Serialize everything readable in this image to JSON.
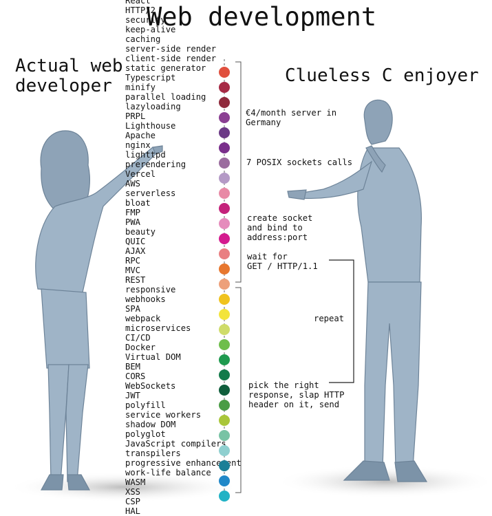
{
  "title": "Web development",
  "left_label": "Actual web\ndeveloper",
  "right_label": "Clueless C enjoyer",
  "terms": [
    "React",
    "HTTP/2",
    "security",
    "keep-alive",
    "caching",
    "server-side render",
    "client-side render",
    "static generator",
    "Typescript",
    "minify",
    "parallel loading",
    "lazyloading",
    "PRPL",
    "Lighthouse",
    "Apache",
    "nginx",
    "lighttpd",
    "prerendering",
    "Vercel",
    "AWS",
    "serverless",
    "bloat",
    "FMP",
    "PWA",
    "beauty",
    "QUIC",
    "AJAX",
    "RPC",
    "MVC",
    "REST",
    "responsive",
    "webhooks",
    "SPA",
    "webpack",
    "microservices",
    "CI/CD",
    "Docker",
    "Virtual DOM",
    "BEM",
    "CORS",
    "WebSockets",
    "JWT",
    "polyfill",
    "service workers",
    "shadow DOM",
    "polyglot",
    "JavaScript compilers",
    "transpilers",
    "progressive enhancement",
    "work-life balance",
    "WASM",
    "XSS",
    "CSP",
    "HAL"
  ],
  "dot_colors": [
    "#e0503e",
    "#a62a45",
    "#8f2a3c",
    "#8a3f92",
    "#6c3a86",
    "#7a2f8b",
    "#9b6d9f",
    "#b49ac6",
    "#e88aa6",
    "#c4227b",
    "#e58cbc",
    "#d41b8f",
    "#e97f82",
    "#e7772f",
    "#eda07a",
    "#f0c31e",
    "#f3e43b",
    "#cfdc6a",
    "#6fbe4b",
    "#1f9a4f",
    "#137a4a",
    "#105e3c",
    "#4a9c45",
    "#a9c63a",
    "#78c3a5",
    "#8fcfcf",
    "#1b7f97",
    "#2188c8",
    "#21b2c5"
  ],
  "notes": {
    "server": "€4/month server in\nGermany",
    "sockets": "7 POSIX sockets calls",
    "create": "create socket\nand bind to\naddress:port",
    "wait": "wait for\nGET / HTTP/1.1",
    "repeat": "repeat",
    "pick": "pick the right\nresponse, slap HTTP\nheader on it, send"
  },
  "colors": {
    "figure": "#9fb4c7",
    "figure_dark": "#7c93a8",
    "shadow": "#d8d8d8"
  }
}
